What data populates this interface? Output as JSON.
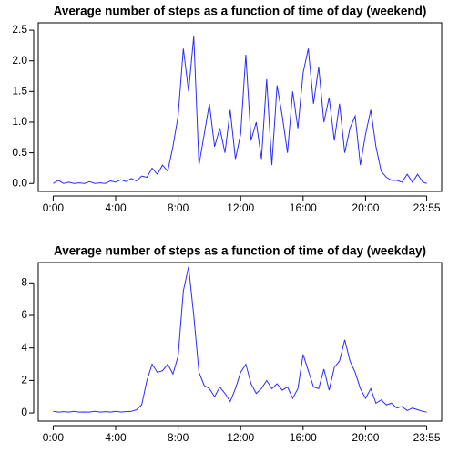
{
  "chart_data": [
    {
      "type": "line",
      "title": "Average number of steps as a function of time of day (weekend)",
      "color": "#2b2bff",
      "x": [
        0,
        20,
        40,
        60,
        80,
        100,
        120,
        140,
        160,
        180,
        200,
        220,
        240,
        260,
        280,
        300,
        320,
        340,
        360,
        380,
        400,
        420,
        440,
        460,
        480,
        500,
        520,
        540,
        560,
        580,
        600,
        620,
        640,
        660,
        680,
        700,
        720,
        740,
        760,
        780,
        800,
        820,
        840,
        860,
        880,
        900,
        920,
        940,
        960,
        980,
        1000,
        1020,
        1040,
        1060,
        1080,
        1100,
        1120,
        1140,
        1160,
        1180,
        1200,
        1220,
        1240,
        1260,
        1280,
        1300,
        1320,
        1340,
        1360,
        1380,
        1400,
        1420,
        1435
      ],
      "values": [
        0,
        0.05,
        0,
        0.02,
        0,
        0.01,
        0,
        0.03,
        0,
        0.01,
        0,
        0.04,
        0.02,
        0.06,
        0.03,
        0.08,
        0.04,
        0.12,
        0.1,
        0.25,
        0.15,
        0.3,
        0.2,
        0.6,
        1.1,
        2.2,
        1.5,
        2.4,
        0.3,
        0.8,
        1.3,
        0.6,
        0.9,
        0.5,
        1.2,
        0.4,
        0.8,
        2.1,
        0.7,
        1.0,
        0.4,
        1.7,
        0.3,
        1.6,
        1.1,
        0.5,
        1.5,
        0.9,
        1.8,
        2.2,
        1.3,
        1.9,
        1.0,
        1.4,
        0.7,
        1.3,
        0.5,
        0.9,
        1.1,
        0.3,
        0.8,
        1.2,
        0.6,
        0.2,
        0.1,
        0.05,
        0.05,
        0.02,
        0.15,
        0.02,
        0.15,
        0.02,
        0.0
      ],
      "xlim": [
        -57.4,
        1492.4
      ],
      "xticks": [
        {
          "value": 0,
          "label": "0:00"
        },
        {
          "value": 240,
          "label": "4:00"
        },
        {
          "value": 480,
          "label": "8:00"
        },
        {
          "value": 720,
          "label": "12:00"
        },
        {
          "value": 960,
          "label": "16:00"
        },
        {
          "value": 1200,
          "label": "20:00"
        },
        {
          "value": 1435,
          "label": "23:55"
        }
      ],
      "ylim": [
        -0.13,
        2.62
      ],
      "yticks": [
        {
          "value": 0,
          "label": "0.0"
        },
        0.5,
        {
          "value": 1,
          "label": "1.0"
        },
        1.5,
        {
          "value": 2,
          "label": "2.0"
        },
        2.5
      ]
    },
    {
      "type": "line",
      "title": "Average number of steps as a function of time of day (weekday)",
      "color": "#2b2bff",
      "x": [
        0,
        20,
        40,
        60,
        80,
        100,
        120,
        140,
        160,
        180,
        200,
        220,
        240,
        260,
        280,
        300,
        320,
        340,
        360,
        380,
        400,
        420,
        440,
        460,
        480,
        500,
        520,
        540,
        560,
        580,
        600,
        620,
        640,
        660,
        680,
        700,
        720,
        740,
        760,
        780,
        800,
        820,
        840,
        860,
        880,
        900,
        920,
        940,
        960,
        980,
        1000,
        1020,
        1040,
        1060,
        1080,
        1100,
        1120,
        1140,
        1160,
        1180,
        1200,
        1220,
        1240,
        1260,
        1280,
        1300,
        1320,
        1340,
        1360,
        1380,
        1400,
        1420,
        1435
      ],
      "values": [
        0.1,
        0.05,
        0.08,
        0.05,
        0.1,
        0.05,
        0.06,
        0.05,
        0.1,
        0.05,
        0.08,
        0.05,
        0.1,
        0.06,
        0.08,
        0.1,
        0.2,
        0.5,
        2.0,
        3.0,
        2.5,
        2.6,
        3.0,
        2.4,
        3.5,
        7.5,
        9.0,
        6.0,
        2.5,
        1.7,
        1.5,
        1.0,
        1.6,
        1.2,
        0.7,
        1.5,
        2.5,
        3.0,
        1.8,
        1.2,
        1.5,
        2.0,
        1.5,
        1.8,
        1.4,
        1.6,
        0.9,
        1.5,
        3.6,
        2.6,
        1.6,
        1.5,
        2.7,
        1.4,
        2.8,
        3.2,
        4.5,
        3.2,
        2.5,
        1.5,
        0.9,
        1.5,
        0.6,
        0.8,
        0.5,
        0.6,
        0.3,
        0.4,
        0.15,
        0.3,
        0.2,
        0.1,
        0.05
      ],
      "xlim": [
        -57.4,
        1492.4
      ],
      "xticks": [
        {
          "value": 0,
          "label": "0:00"
        },
        {
          "value": 240,
          "label": "4:00"
        },
        {
          "value": 480,
          "label": "8:00"
        },
        {
          "value": 720,
          "label": "12:00"
        },
        {
          "value": 960,
          "label": "16:00"
        },
        {
          "value": 1200,
          "label": "20:00"
        },
        {
          "value": 1435,
          "label": "23:55"
        }
      ],
      "ylim": [
        -0.5,
        9.25
      ],
      "yticks": [
        0,
        2,
        4,
        6,
        8
      ]
    }
  ]
}
